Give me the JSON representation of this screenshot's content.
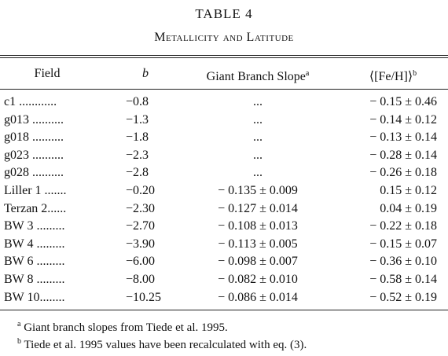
{
  "table_title": "TABLE 4",
  "table_subtitle": "Metallicity and Latitude",
  "headers": [
    {
      "text": "Field"
    },
    {
      "text": "b"
    },
    {
      "text": "Giant Branch Slope",
      "note": "a"
    },
    {
      "text": "⟨[Fe/H]⟩",
      "note": "b"
    }
  ],
  "rows": [
    [
      "c1 ............",
      "−0.8",
      "...",
      "− 0.15 ± 0.46"
    ],
    [
      "g013 ..........",
      "−1.3",
      "...",
      "− 0.14 ± 0.12"
    ],
    [
      "g018 ..........",
      "−1.8",
      "...",
      "− 0.13 ± 0.14"
    ],
    [
      "g023 ..........",
      "−2.3",
      "...",
      "− 0.28 ± 0.14"
    ],
    [
      "g028 ..........",
      "−2.8",
      "...",
      "− 0.26 ± 0.18"
    ],
    [
      "Liller 1 .......",
      "−0.20",
      "− 0.135 ± 0.009",
      "0.15 ± 0.12"
    ],
    [
      "Terzan 2......",
      "−2.30",
      "− 0.127 ± 0.014",
      "0.04 ± 0.19"
    ],
    [
      "BW 3 .........",
      "−2.70",
      "− 0.108 ± 0.013",
      "− 0.22 ± 0.18"
    ],
    [
      "BW 4 .........",
      "−3.90",
      "− 0.113 ± 0.005",
      "− 0.15 ± 0.07"
    ],
    [
      "BW 6 .........",
      "−6.00",
      "− 0.098 ± 0.007",
      "− 0.36 ± 0.10"
    ],
    [
      "BW 8 .........",
      "−8.00",
      "− 0.082 ± 0.010",
      "− 0.58 ± 0.14"
    ],
    [
      "BW 10........",
      "−10.25",
      "− 0.086 ± 0.014",
      "− 0.52 ± 0.19"
    ]
  ],
  "footnotes": [
    {
      "mark": "a",
      "text": "Giant branch slopes from Tiede et al. 1995."
    },
    {
      "mark": "b",
      "text": "Tiede et al. 1995 values have been recalculated with eq. (3)."
    }
  ]
}
